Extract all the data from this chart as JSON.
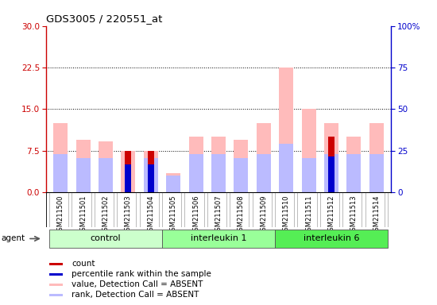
{
  "title": "GDS3005 / 220551_at",
  "samples": [
    "GSM211500",
    "GSM211501",
    "GSM211502",
    "GSM211503",
    "GSM211504",
    "GSM211505",
    "GSM211506",
    "GSM211507",
    "GSM211508",
    "GSM211509",
    "GSM211510",
    "GSM211511",
    "GSM211512",
    "GSM211513",
    "GSM211514"
  ],
  "group_names": [
    "control",
    "interleukin 1",
    "interleukin 6"
  ],
  "group_sample_indices": [
    [
      0,
      1,
      2,
      3,
      4
    ],
    [
      5,
      6,
      7,
      8,
      9
    ],
    [
      10,
      11,
      12,
      13,
      14
    ]
  ],
  "group_colors": [
    "#ccffcc",
    "#99ff99",
    "#55ee55"
  ],
  "value_absent": [
    12.5,
    9.5,
    9.2,
    7.5,
    7.5,
    3.5,
    10.0,
    10.0,
    9.5,
    12.5,
    22.5,
    15.0,
    12.5,
    10.0,
    12.5
  ],
  "rank_absent": [
    6.8,
    6.2,
    6.2,
    0.0,
    6.2,
    3.0,
    6.8,
    6.8,
    6.2,
    6.8,
    8.8,
    6.2,
    6.8,
    6.8,
    6.8
  ],
  "count_red": [
    0,
    0,
    0,
    7.5,
    7.5,
    0,
    0,
    0,
    0,
    0,
    0,
    0,
    10.0,
    0,
    0
  ],
  "rank_blue": [
    0,
    0,
    0,
    5.0,
    5.0,
    0,
    0,
    0,
    0,
    0,
    0,
    0,
    6.5,
    0,
    0
  ],
  "ylim": [
    0,
    30
  ],
  "yticks_left": [
    0,
    7.5,
    15,
    22.5,
    30
  ],
  "yticks_right": [
    0,
    25,
    50,
    75,
    100
  ],
  "color_value_absent": "#ffbbbb",
  "color_rank_absent": "#bbbbff",
  "color_count": "#cc0000",
  "color_rank": "#0000cc",
  "left_axis_color": "#cc0000",
  "right_axis_color": "#0000cc",
  "legend_items": [
    {
      "color": "#cc0000",
      "label": "count"
    },
    {
      "color": "#0000cc",
      "label": "percentile rank within the sample"
    },
    {
      "color": "#ffbbbb",
      "label": "value, Detection Call = ABSENT"
    },
    {
      "color": "#bbbbff",
      "label": "rank, Detection Call = ABSENT"
    }
  ]
}
